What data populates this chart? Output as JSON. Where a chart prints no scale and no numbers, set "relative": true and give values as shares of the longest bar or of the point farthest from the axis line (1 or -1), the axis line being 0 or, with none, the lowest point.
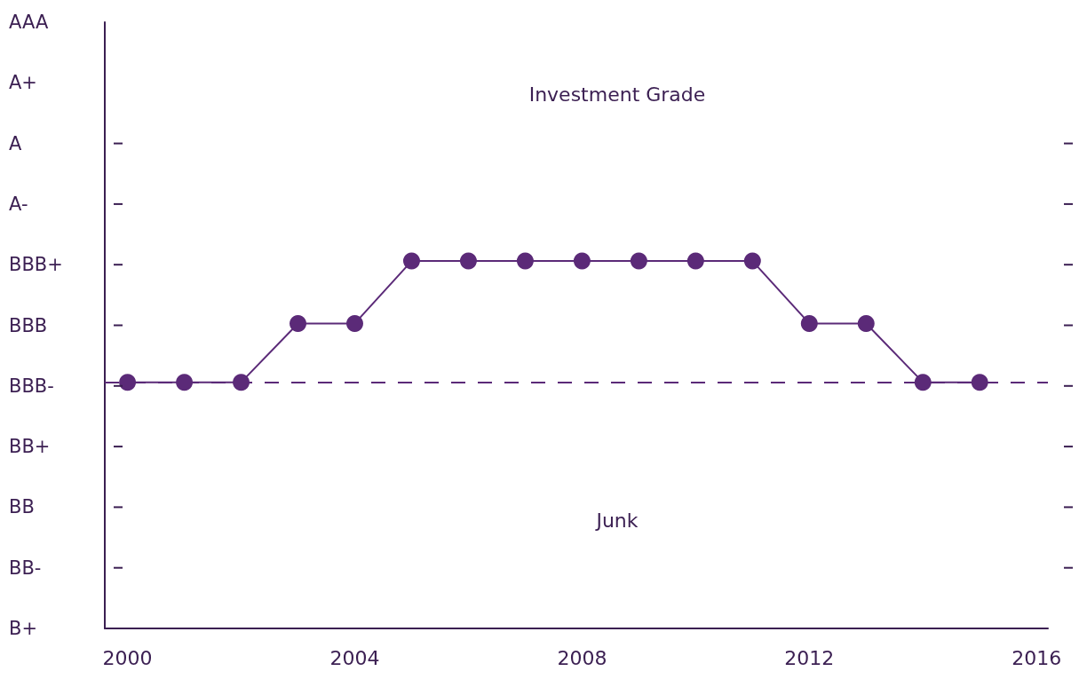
{
  "chart_data": {
    "type": "line",
    "relative": true,
    "x": [
      2000,
      2001,
      2002,
      2003,
      2004,
      2005,
      2006,
      2007,
      2008,
      2009,
      2010,
      2011,
      2012,
      2013,
      2014,
      2015
    ],
    "series": [
      {
        "color": "#5b2a78",
        "values": [
          0.67,
          0.67,
          0.67,
          0.83,
          0.83,
          1,
          1,
          1,
          1,
          1,
          1,
          1,
          0.83,
          0.83,
          0.67,
          0.67
        ]
      }
    ],
    "xlim": [
      1999.6,
      2016.2
    ],
    "xticks": [
      2000,
      2004,
      2008,
      2012,
      2016
    ],
    "ref_lines": [
      {
        "axis": "y",
        "value": 0.67,
        "color": "#5b2a78",
        "line_style": "dashed"
      }
    ],
    "annotations": [
      "Investment Grade",
      "Junk",
      "B+",
      "BB-",
      "BB",
      "BB+",
      "BBB-",
      "BBB",
      "BBB+",
      "A-",
      "A",
      "A+",
      "AAA"
    ],
    "marker": "circle",
    "line_style": "solid",
    "grid": false
  }
}
